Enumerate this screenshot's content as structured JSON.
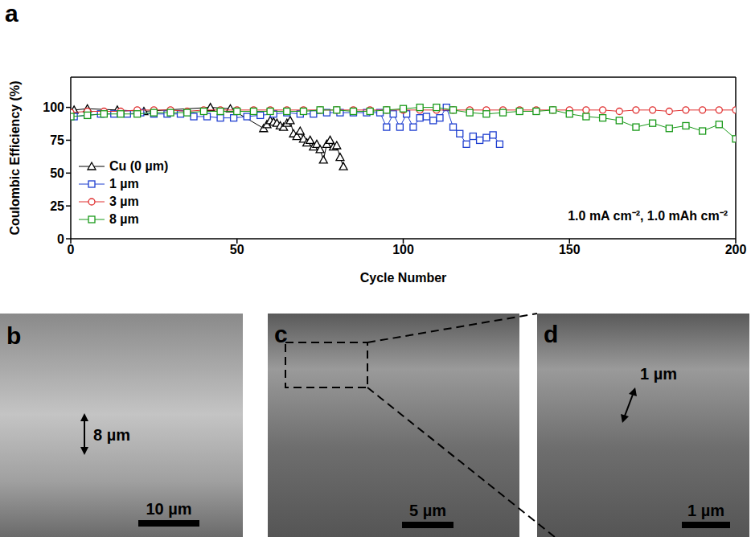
{
  "chart_data": {
    "type": "scatter",
    "panel": "a",
    "ylabel": "Coulombic Efficiency (%)",
    "xlabel": "Cycle Number",
    "annotation": "1.0 mA cm⁻², 1.0 mAh cm⁻²",
    "xlim": [
      0,
      200
    ],
    "xticks": [
      0,
      50,
      100,
      150,
      200
    ],
    "ylim": [
      0,
      123
    ],
    "yticks": [
      0,
      25,
      50,
      75,
      100
    ],
    "grid": false,
    "legend": "lower left",
    "series": [
      {
        "name": "Cu (0 µm)",
        "color": "#000000",
        "marker": "triangle",
        "x": [
          1,
          5,
          14,
          22,
          42,
          48,
          58,
          59,
          60,
          61,
          62,
          63,
          64,
          65,
          66,
          67,
          68,
          69,
          70,
          71,
          72,
          73,
          74,
          75,
          76,
          77,
          78,
          79,
          80,
          81,
          82
        ],
        "values": [
          98,
          99,
          98,
          97,
          100,
          99,
          84,
          87,
          90,
          89,
          88,
          86,
          85,
          88,
          90,
          80,
          78,
          82,
          76,
          73,
          75,
          70,
          72,
          68,
          60,
          72,
          75,
          70,
          71,
          62,
          55
        ]
      },
      {
        "name": "1 µm",
        "color": "#1f3fd0",
        "marker": "square",
        "x": [
          1,
          5,
          9,
          13,
          17,
          21,
          25,
          29,
          33,
          37,
          41,
          45,
          49,
          53,
          57,
          61,
          65,
          69,
          73,
          77,
          81,
          85,
          89,
          93,
          95,
          97,
          99,
          101,
          103,
          105,
          107,
          109,
          111,
          113,
          115,
          117,
          119,
          121,
          123,
          125,
          127,
          129
        ],
        "values": [
          93,
          94,
          95,
          95,
          95,
          96,
          95,
          95,
          95,
          93,
          93,
          92,
          92,
          93,
          94,
          95,
          96,
          95,
          95,
          96,
          96,
          96,
          96,
          96,
          85,
          95,
          85,
          95,
          85,
          92,
          93,
          90,
          92,
          100,
          85,
          80,
          72,
          78,
          75,
          77,
          79,
          72
        ]
      },
      {
        "name": "3 µm",
        "color": "#e03030",
        "marker": "circle",
        "x": [
          0,
          5,
          10,
          15,
          20,
          25,
          30,
          35,
          40,
          45,
          50,
          55,
          60,
          65,
          70,
          75,
          80,
          85,
          90,
          95,
          100,
          105,
          110,
          115,
          120,
          125,
          130,
          135,
          140,
          145,
          150,
          155,
          160,
          165,
          170,
          175,
          180,
          185,
          190,
          195,
          200
        ],
        "values": [
          96,
          97,
          97,
          97,
          98,
          98,
          98,
          97,
          98,
          98,
          98,
          98,
          98,
          98,
          98,
          98,
          98,
          98,
          98,
          98,
          98,
          98,
          98,
          98,
          98,
          98,
          98,
          98,
          98,
          98,
          98,
          98,
          98,
          97,
          98,
          98,
          97,
          98,
          98,
          98,
          98
        ]
      },
      {
        "name": "8 µm",
        "color": "#1a9a1a",
        "marker": "square",
        "x": [
          0,
          5,
          10,
          15,
          20,
          25,
          30,
          35,
          40,
          45,
          50,
          55,
          60,
          65,
          70,
          75,
          80,
          85,
          90,
          95,
          100,
          105,
          110,
          115,
          120,
          125,
          130,
          135,
          140,
          145,
          150,
          155,
          160,
          165,
          170,
          175,
          180,
          185,
          190,
          195,
          200
        ],
        "values": [
          93,
          94,
          95,
          95,
          95,
          96,
          96,
          96,
          97,
          97,
          97,
          97,
          97,
          97,
          97,
          98,
          98,
          97,
          97,
          98,
          99,
          100,
          100,
          98,
          96,
          95,
          96,
          97,
          97,
          98,
          95,
          93,
          92,
          90,
          85,
          88,
          84,
          86,
          82,
          87,
          76
        ]
      }
    ]
  },
  "images": [
    {
      "label": "b",
      "annotations": [
        "8 µm"
      ],
      "scale_bar": "10 µm"
    },
    {
      "label": "c",
      "annotations": [],
      "scale_bar": "5 µm"
    },
    {
      "label": "d",
      "annotations": [
        "1 µm"
      ],
      "scale_bar": "1 µm"
    }
  ]
}
